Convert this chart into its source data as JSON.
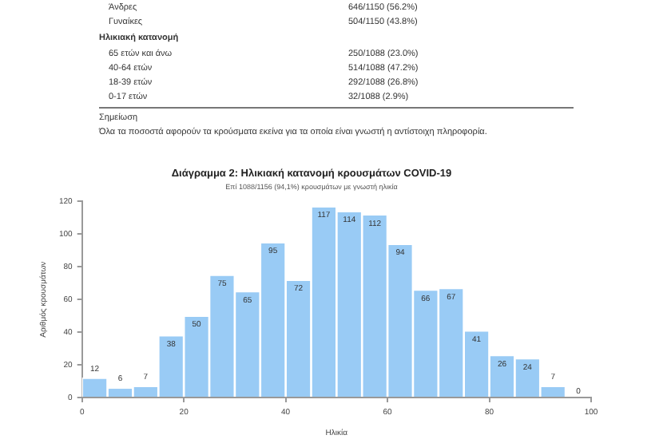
{
  "chart_data": {
    "type": "histogram",
    "title": "Διάγραμμα 2: Ηλικιακή κατανομή κρουσμάτων COVID-19",
    "subtitle": "Επί 1088/1156 (94,1%) κρουσμάτων με γνωστή ηλικία",
    "xlabel": "Ηλικία",
    "ylabel": "Αριθμός κρουσμάτων",
    "bins": [
      0,
      5,
      10,
      15,
      20,
      25,
      30,
      35,
      40,
      45,
      50,
      55,
      60,
      65,
      70,
      75,
      80,
      85,
      90,
      95,
      100
    ],
    "values": [
      12,
      6,
      7,
      38,
      50,
      75,
      65,
      95,
      72,
      117,
      114,
      112,
      94,
      66,
      67,
      41,
      26,
      24,
      7,
      0
    ],
    "color": "#99cbf5",
    "data_labels": true,
    "grid": false,
    "xlim": [
      0,
      100
    ],
    "xticks": [
      0,
      20,
      40,
      60,
      80,
      100
    ],
    "ylim": [
      0,
      120
    ],
    "yticks": [
      0,
      20,
      40,
      60,
      80,
      100,
      120
    ],
    "annotations": [
      "Άνδρες 646/1150 (56.2%)",
      "Γυναίκες 504/1150 (43.8%)",
      "Ηλικιακή κατανομή",
      "65 ετών και άνω 250/1088 (23.0%)",
      "40-64 ετών 514/1088 (47.2%)",
      "18-39 ετών 292/1088 (26.8%)",
      "0-17 ετών 32/1088 (2.9%)",
      "Σημείωση",
      "Όλα τα ποσοστά αφορούν τα κρούσματα εκείνα για τα οποία είναι γνωστή η αντίστοιχη πληροφορία."
    ]
  }
}
